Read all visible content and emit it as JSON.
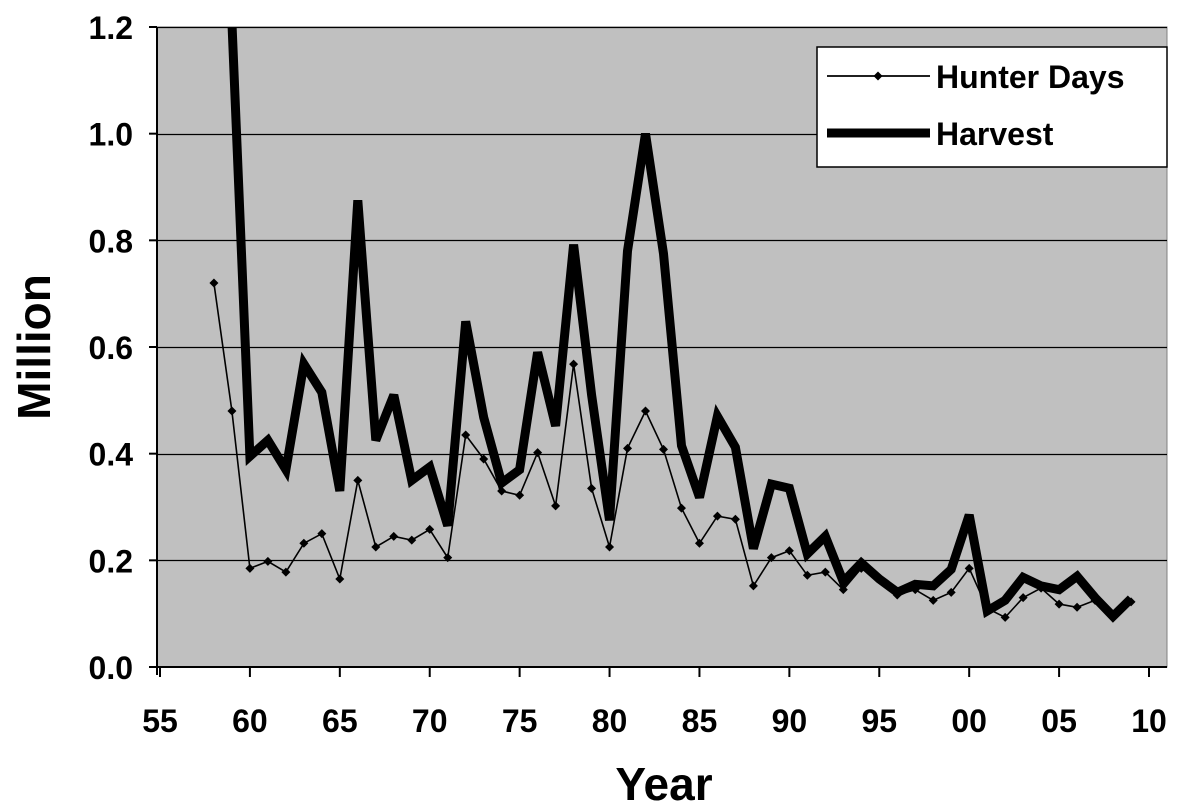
{
  "chart_data": {
    "type": "line",
    "title": "",
    "xlabel": "Year",
    "ylabel": "Million",
    "xlim": [
      1955,
      2010
    ],
    "ylim": [
      0.0,
      1.2
    ],
    "x_ticks": [
      {
        "value": 1955,
        "label": "55"
      },
      {
        "value": 1960,
        "label": "60"
      },
      {
        "value": 1965,
        "label": "65"
      },
      {
        "value": 1970,
        "label": "70"
      },
      {
        "value": 1975,
        "label": "75"
      },
      {
        "value": 1980,
        "label": "80"
      },
      {
        "value": 1985,
        "label": "85"
      },
      {
        "value": 1990,
        "label": "90"
      },
      {
        "value": 1995,
        "label": "95"
      },
      {
        "value": 2000,
        "label": "00"
      },
      {
        "value": 2005,
        "label": "05"
      },
      {
        "value": 2010,
        "label": "10"
      }
    ],
    "y_ticks": [
      {
        "value": 0.0,
        "label": "0.0"
      },
      {
        "value": 0.2,
        "label": "0.2"
      },
      {
        "value": 0.4,
        "label": "0.4"
      },
      {
        "value": 0.6,
        "label": "0.6"
      },
      {
        "value": 0.8,
        "label": "0.8"
      },
      {
        "value": 1.0,
        "label": "1.0"
      },
      {
        "value": 1.2,
        "label": "1.2"
      }
    ],
    "grid": "horizontal",
    "legend_position": "top-right",
    "plot_background": "#c0c0c0",
    "series": [
      {
        "name": "Hunter Days",
        "style": "thin-with-diamond-markers",
        "color": "#000000",
        "x": [
          1958,
          1959,
          1960,
          1961,
          1962,
          1963,
          1964,
          1965,
          1966,
          1967,
          1968,
          1969,
          1970,
          1971,
          1972,
          1973,
          1974,
          1975,
          1976,
          1977,
          1978,
          1979,
          1980,
          1981,
          1982,
          1983,
          1984,
          1985,
          1986,
          1987,
          1988,
          1989,
          1990,
          1991,
          1992,
          1993,
          1994,
          1995,
          1996,
          1997,
          1998,
          1999,
          2000,
          2001,
          2002,
          2003,
          2004,
          2005,
          2006,
          2007,
          2008,
          2009
        ],
        "values": [
          0.72,
          0.48,
          0.185,
          0.198,
          0.178,
          0.232,
          0.25,
          0.165,
          0.35,
          0.225,
          0.245,
          0.238,
          0.258,
          0.205,
          0.435,
          0.39,
          0.33,
          0.322,
          0.402,
          0.302,
          0.568,
          0.335,
          0.225,
          0.41,
          0.48,
          0.408,
          0.298,
          0.232,
          0.283,
          0.277,
          0.152,
          0.205,
          0.218,
          0.172,
          0.178,
          0.145,
          0.185,
          0.165,
          0.135,
          0.145,
          0.125,
          0.14,
          0.185,
          0.11,
          0.093,
          0.13,
          0.148,
          0.118,
          0.112,
          0.125,
          0.095,
          0.122
        ]
      },
      {
        "name": "Harvest",
        "style": "thick",
        "color": "#000000",
        "x": [
          1959,
          1960,
          1961,
          1962,
          1963,
          1964,
          1965,
          1966,
          1967,
          1968,
          1969,
          1970,
          1971,
          1972,
          1973,
          1974,
          1975,
          1976,
          1977,
          1978,
          1979,
          1980,
          1981,
          1982,
          1983,
          1984,
          1985,
          1986,
          1987,
          1988,
          1989,
          1990,
          1991,
          1992,
          1993,
          1994,
          1995,
          1996,
          1997,
          1998,
          1999,
          2000,
          2001,
          2002,
          2003,
          2004,
          2005,
          2006,
          2007,
          2008,
          2009
        ],
        "values": [
          1.21,
          0.395,
          0.425,
          0.37,
          0.568,
          0.515,
          0.33,
          0.875,
          0.425,
          0.51,
          0.35,
          0.375,
          0.265,
          0.648,
          0.468,
          0.345,
          0.37,
          0.59,
          0.452,
          0.792,
          0.51,
          0.275,
          0.78,
          1.0,
          0.775,
          0.415,
          0.318,
          0.47,
          0.412,
          0.222,
          0.343,
          0.335,
          0.212,
          0.245,
          0.16,
          0.195,
          0.165,
          0.14,
          0.155,
          0.152,
          0.183,
          0.285,
          0.105,
          0.125,
          0.168,
          0.152,
          0.145,
          0.17,
          0.13,
          0.095,
          0.128
        ]
      }
    ]
  }
}
